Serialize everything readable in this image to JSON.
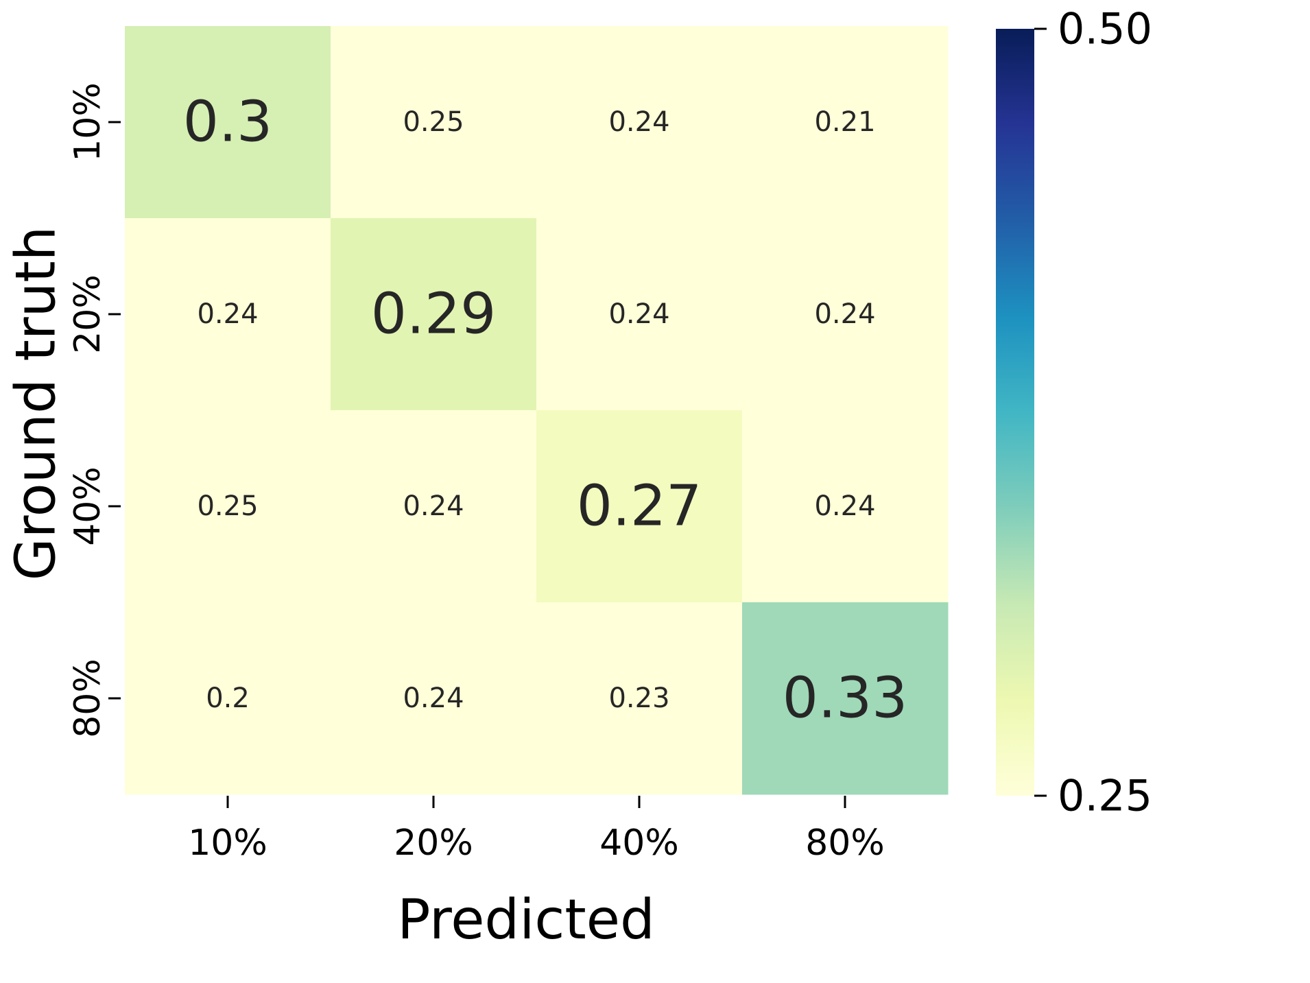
{
  "chart_data": {
    "type": "heatmap",
    "xlabel": "Predicted",
    "ylabel": "Ground truth",
    "x_categories": [
      "10%",
      "20%",
      "40%",
      "80%"
    ],
    "y_categories": [
      "10%",
      "20%",
      "40%",
      "80%"
    ],
    "values": [
      [
        0.3,
        0.25,
        0.24,
        0.21
      ],
      [
        0.24,
        0.29,
        0.24,
        0.24
      ],
      [
        0.25,
        0.24,
        0.27,
        0.24
      ],
      [
        0.2,
        0.24,
        0.23,
        0.33
      ]
    ],
    "value_labels": [
      [
        "0.3",
        "0.25",
        "0.24",
        "0.21"
      ],
      [
        "0.24",
        "0.29",
        "0.24",
        "0.24"
      ],
      [
        "0.25",
        "0.24",
        "0.27",
        "0.24"
      ],
      [
        "0.2",
        "0.24",
        "0.23",
        "0.33"
      ]
    ],
    "highlight_diagonal": true,
    "colormap": "YlGnBu",
    "colormap_stops": [
      "#ffffd9",
      "#edf8b1",
      "#c7e9b4",
      "#7fcdbb",
      "#41b6c4",
      "#1d91c0",
      "#225ea8",
      "#253494",
      "#081d58"
    ],
    "vmin": 0.25,
    "vmax": 0.5,
    "colorbar": {
      "min_label": "0.25",
      "max_label": "0.50"
    }
  }
}
